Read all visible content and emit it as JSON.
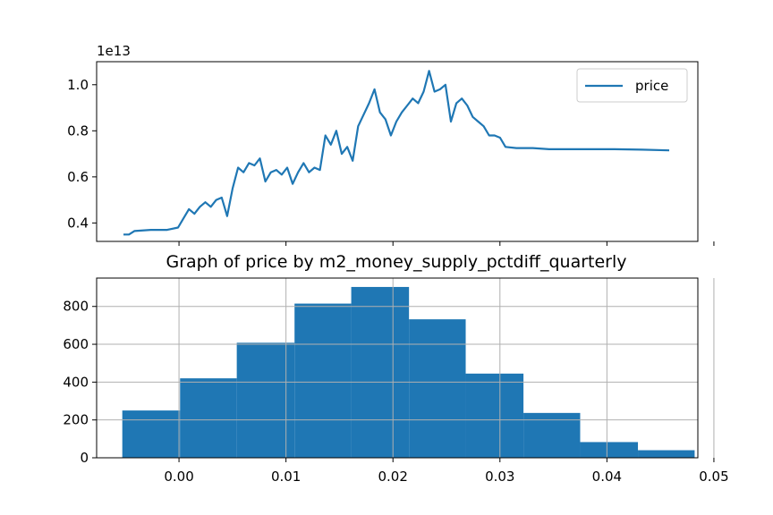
{
  "chart_data": [
    {
      "type": "line",
      "title": "",
      "xlabel": "",
      "ylabel": "",
      "y_offset_label": "1e13",
      "y_scale": 10000000000000.0,
      "ylim": [
        0.32,
        1.1
      ],
      "yticks": [
        0.4,
        0.6,
        0.8,
        1.0
      ],
      "ytick_labels": [
        "0.4",
        "0.6",
        "0.8",
        "1.0"
      ],
      "xlim": [
        0,
        1
      ],
      "legend": {
        "entries": [
          "price"
        ],
        "placement": "upper right"
      },
      "x_tick_labels_shown": false,
      "series": [
        {
          "name": "price",
          "color": "#1f77b4",
          "x": [
            0.0,
            0.01,
            0.02,
            0.05,
            0.08,
            0.1,
            0.11,
            0.12,
            0.13,
            0.14,
            0.15,
            0.16,
            0.17,
            0.18,
            0.19,
            0.2,
            0.21,
            0.22,
            0.23,
            0.24,
            0.25,
            0.26,
            0.27,
            0.28,
            0.29,
            0.3,
            0.31,
            0.32,
            0.33,
            0.34,
            0.35,
            0.36,
            0.37,
            0.38,
            0.39,
            0.4,
            0.41,
            0.42,
            0.43,
            0.44,
            0.45,
            0.46,
            0.47,
            0.48,
            0.49,
            0.5,
            0.51,
            0.52,
            0.53,
            0.54,
            0.55,
            0.56,
            0.57,
            0.58,
            0.59,
            0.6,
            0.61,
            0.62,
            0.63,
            0.64,
            0.65,
            0.66,
            0.67,
            0.68,
            0.69,
            0.7,
            0.72,
            0.75,
            0.78,
            0.82,
            0.86,
            0.9,
            0.95,
            1.0
          ],
          "y": [
            0.35,
            0.35,
            0.365,
            0.37,
            0.37,
            0.38,
            0.42,
            0.46,
            0.44,
            0.47,
            0.49,
            0.47,
            0.5,
            0.51,
            0.43,
            0.55,
            0.64,
            0.62,
            0.66,
            0.65,
            0.68,
            0.58,
            0.62,
            0.63,
            0.61,
            0.64,
            0.57,
            0.62,
            0.66,
            0.62,
            0.64,
            0.63,
            0.78,
            0.74,
            0.8,
            0.7,
            0.73,
            0.67,
            0.82,
            0.87,
            0.92,
            0.98,
            0.88,
            0.85,
            0.78,
            0.84,
            0.88,
            0.91,
            0.94,
            0.92,
            0.97,
            1.06,
            0.97,
            0.98,
            1.0,
            0.84,
            0.92,
            0.94,
            0.91,
            0.86,
            0.84,
            0.82,
            0.78,
            0.78,
            0.77,
            0.73,
            0.725,
            0.725,
            0.72,
            0.72,
            0.72,
            0.72,
            0.718,
            0.715
          ]
        }
      ]
    },
    {
      "type": "bar",
      "subtype": "histogram",
      "title": "Graph of price by m2_money_supply_pctdiff_quarterly",
      "xlabel": "",
      "ylabel": "",
      "xlim": [
        -0.0077,
        0.0485
      ],
      "ylim": [
        0,
        950
      ],
      "xticks": [
        0.0,
        0.01,
        0.02,
        0.03,
        0.04,
        0.05
      ],
      "xtick_labels": [
        "0.00",
        "0.01",
        "0.02",
        "0.03",
        "0.04",
        "0.05"
      ],
      "yticks": [
        0,
        200,
        400,
        600,
        800
      ],
      "ytick_labels": [
        "0",
        "200",
        "400",
        "600",
        "800"
      ],
      "grid": true,
      "color": "#1f77b4",
      "bin_edges": [
        -0.0053,
        0.0001,
        0.0054,
        0.0108,
        0.0161,
        0.0215,
        0.0268,
        0.0322,
        0.0375,
        0.0429,
        0.0482
      ],
      "values": [
        250,
        420,
        608,
        815,
        903,
        732,
        445,
        237,
        83,
        40
      ]
    }
  ]
}
